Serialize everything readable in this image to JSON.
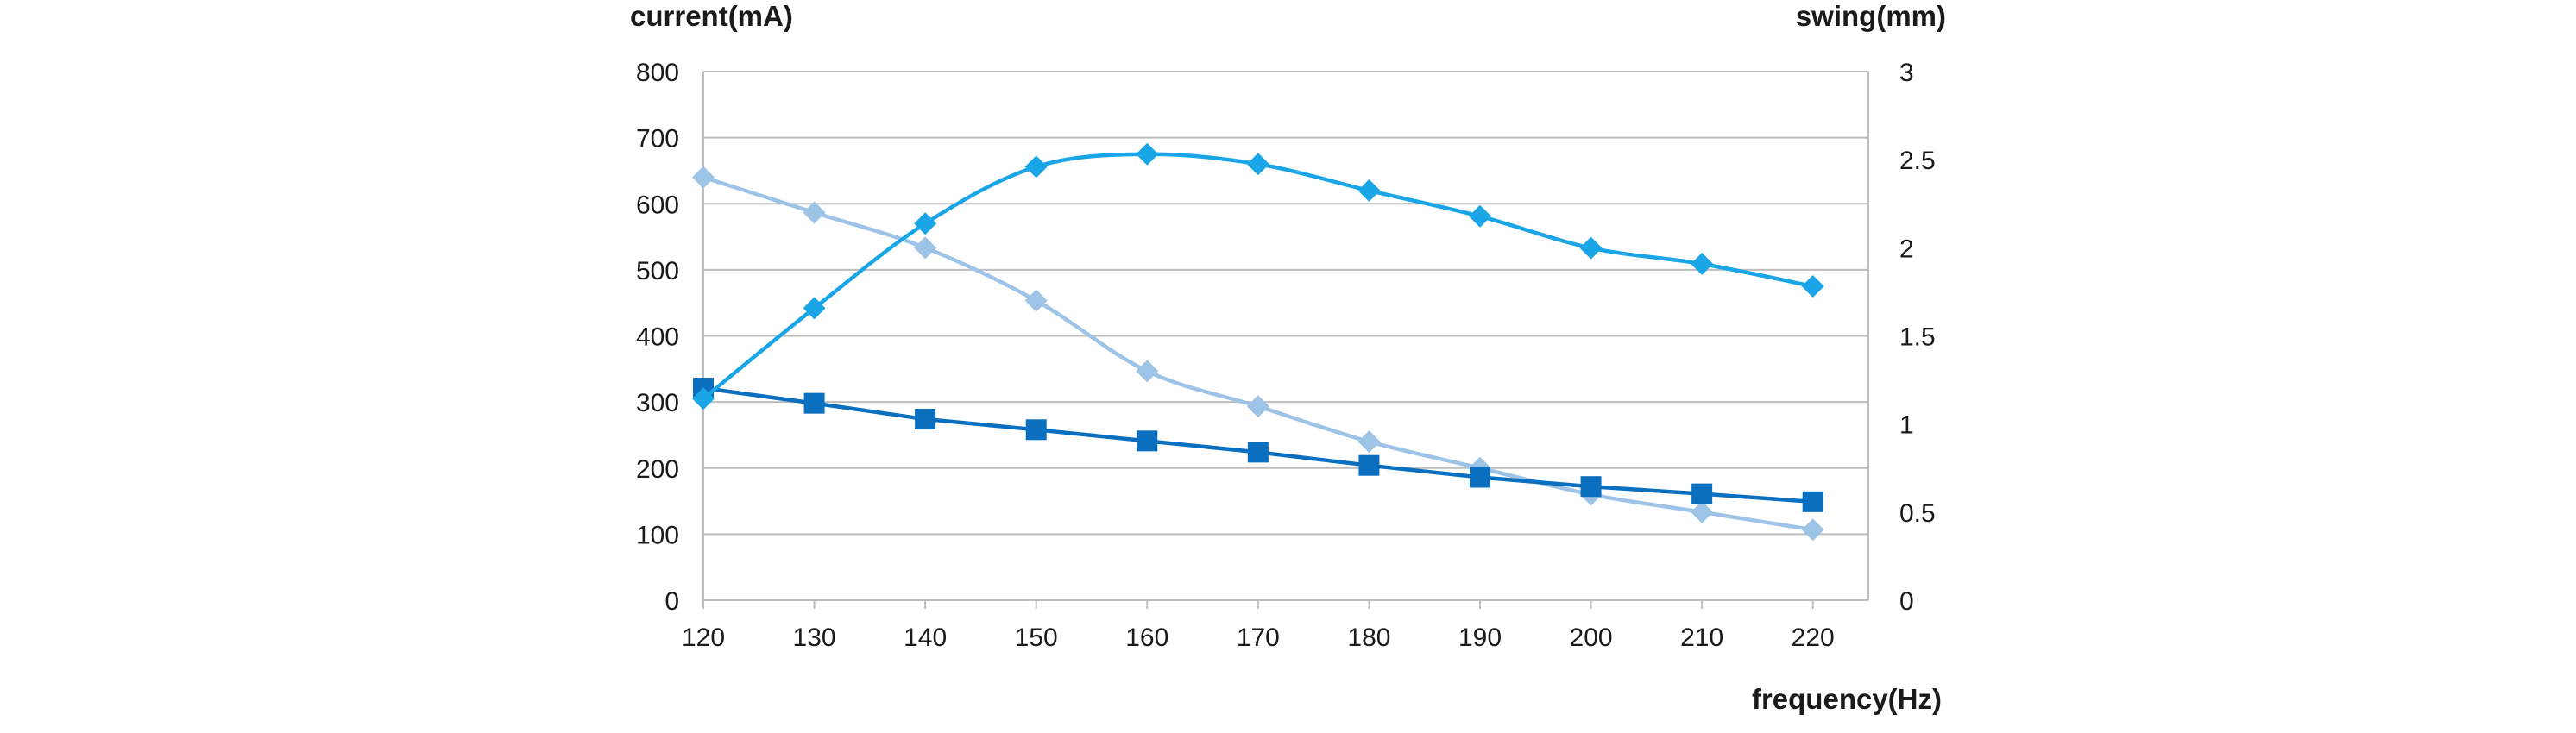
{
  "chart_data": {
    "type": "line",
    "x": [
      120,
      130,
      140,
      150,
      160,
      170,
      180,
      190,
      200,
      210,
      220
    ],
    "xlabel": "frequency(Hz)",
    "ylabel": "current(mA)",
    "y2label": "swing(mm)",
    "xlim": [
      120,
      225
    ],
    "ylim": [
      0,
      800
    ],
    "y2lim": [
      0,
      3
    ],
    "xticks": [
      "120",
      "130",
      "140",
      "150",
      "160",
      "170",
      "180",
      "190",
      "200",
      "210",
      "220"
    ],
    "yticks": [
      "0",
      "100",
      "200",
      "300",
      "400",
      "500",
      "600",
      "700",
      "800"
    ],
    "y2ticks": [
      "0",
      "0.5",
      "1",
      "1.5",
      "2",
      "2.5",
      "3"
    ],
    "grid": true,
    "legend": "none",
    "series": [
      {
        "axis": "left",
        "marker": "diamond",
        "smooth": true,
        "color": "#1aa6e6",
        "values": [
          305,
          442,
          570,
          656,
          675,
          660,
          620,
          581,
          533,
          509,
          475
        ]
      },
      {
        "axis": "left",
        "marker": "square",
        "smooth": false,
        "color": "#0a6fbf",
        "values": [
          321,
          298,
          274,
          258,
          241,
          224,
          204,
          186,
          172,
          161,
          149
        ]
      },
      {
        "axis": "right",
        "marker": "diamond",
        "smooth": true,
        "color": "#9dc3e6",
        "values": [
          2.4,
          2.2,
          2.0,
          1.7,
          1.3,
          1.1,
          0.9,
          0.75,
          0.6,
          0.5,
          0.4
        ]
      }
    ]
  }
}
